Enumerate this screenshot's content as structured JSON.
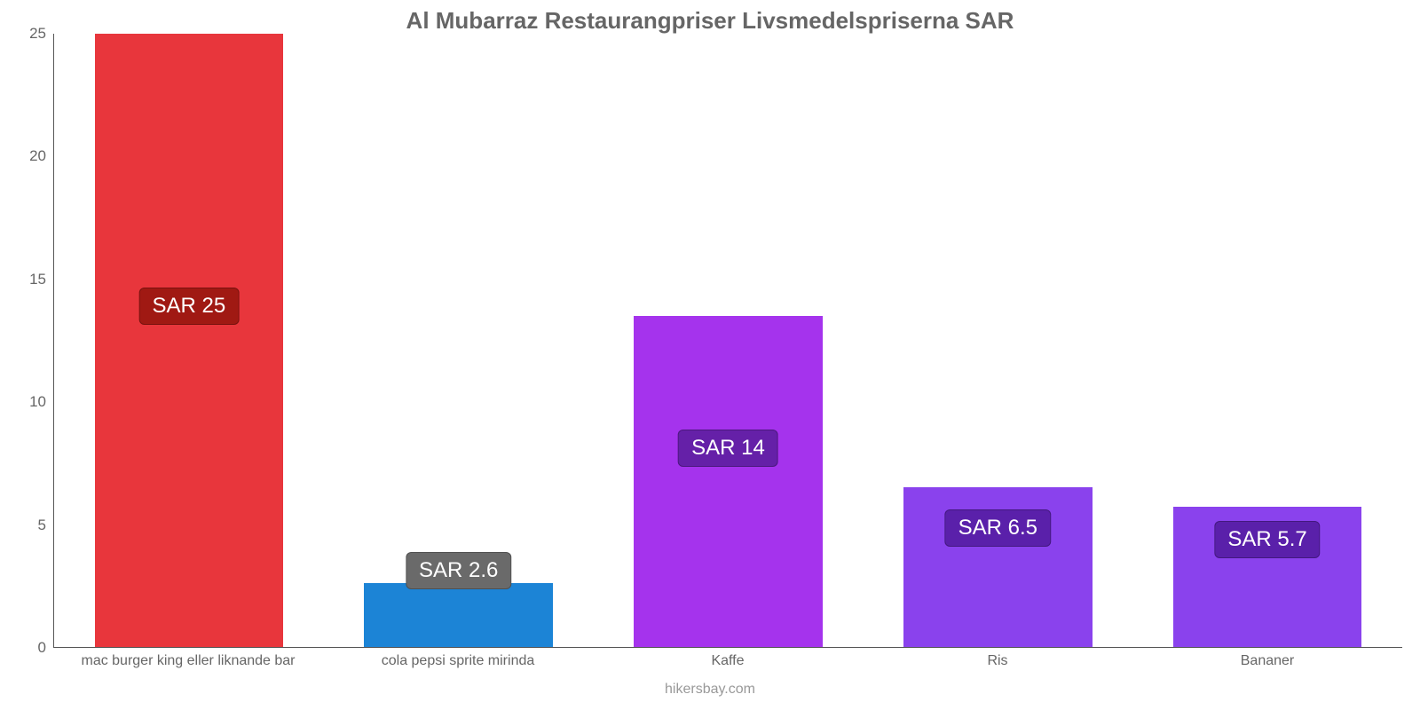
{
  "chart": {
    "type": "bar",
    "title": "Al Mubarraz Restaurangpriser Livsmedelspriserna SAR",
    "title_color": "#666666",
    "title_fontsize": 26,
    "background_color": "#ffffff",
    "axis_color": "#555555",
    "label_color": "#666666",
    "label_fontsize": 16,
    "tick_fontsize": 17,
    "attribution": "hikersbay.com",
    "attribution_color": "#999999",
    "y_axis": {
      "min": 0,
      "max": 25,
      "tick_step": 5,
      "ticks": [
        "0",
        "5",
        "10",
        "15",
        "20",
        "25"
      ]
    },
    "bar_width_pct": 70,
    "value_label_fontsize": 24,
    "value_label_text_color": "#ffffff",
    "value_label_border_radius": 6,
    "categories": [
      {
        "label": "mac burger king eller liknande bar",
        "value": 25,
        "value_label": "SAR 25",
        "bar_color": "#e8363c",
        "badge_color": "#a01913",
        "badge_position_pct": 55
      },
      {
        "label": "cola pepsi sprite mirinda",
        "value": 2.6,
        "value_label": "SAR 2.6",
        "bar_color": "#1c84d6",
        "badge_color": "#6a6a6a",
        "badge_position_pct": 12
      },
      {
        "label": "Kaffe",
        "value": 13.5,
        "value_label": "SAR 14",
        "bar_color": "#a533ed",
        "badge_color": "#6520a8",
        "badge_position_pct": 32
      },
      {
        "label": "Ris",
        "value": 6.5,
        "value_label": "SAR 6.5",
        "bar_color": "#8a42ed",
        "badge_color": "#5a20aa",
        "badge_position_pct": 19
      },
      {
        "label": "Bananer",
        "value": 5.7,
        "value_label": "SAR 5.7",
        "bar_color": "#8a42ed",
        "badge_color": "#5a20aa",
        "badge_position_pct": 17
      }
    ]
  }
}
